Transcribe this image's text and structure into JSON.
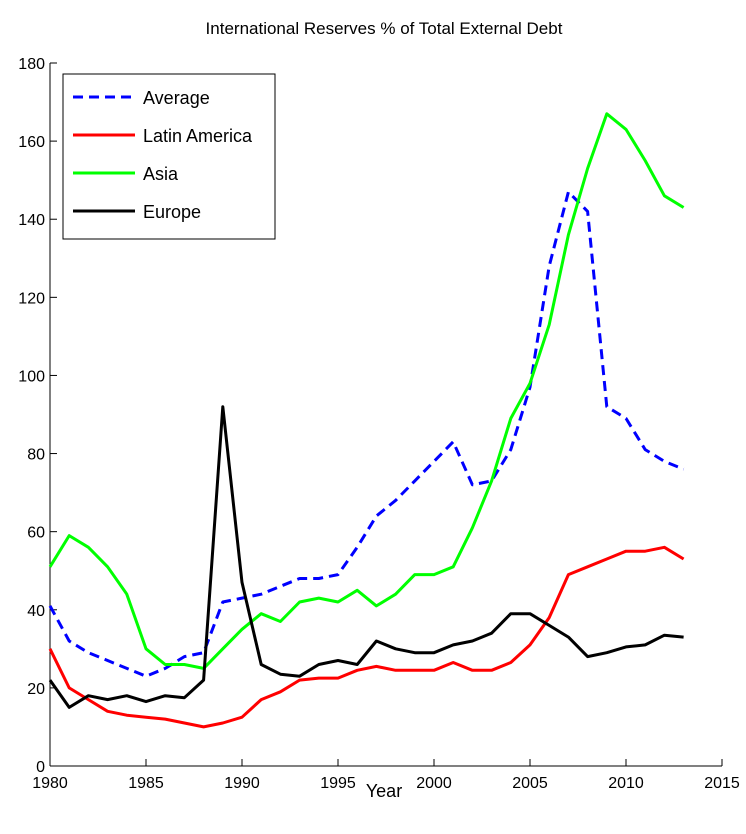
{
  "chart_data": {
    "type": "line",
    "title": "International Reserves % of Total External Debt",
    "xlabel": "Year",
    "ylabel": "",
    "xlim": [
      1980,
      2015
    ],
    "ylim": [
      0,
      180
    ],
    "xticks": [
      1980,
      1985,
      1990,
      1995,
      2000,
      2005,
      2010,
      2015
    ],
    "yticks": [
      0,
      20,
      40,
      60,
      80,
      100,
      120,
      140,
      160,
      180
    ],
    "grid": false,
    "legend_position": "top-left",
    "x": [
      1980,
      1981,
      1982,
      1983,
      1984,
      1985,
      1986,
      1987,
      1988,
      1989,
      1990,
      1991,
      1992,
      1993,
      1994,
      1995,
      1996,
      1997,
      1998,
      1999,
      2000,
      2001,
      2002,
      2003,
      2004,
      2005,
      2006,
      2007,
      2008,
      2009,
      2010,
      2011,
      2012,
      2013
    ],
    "series": [
      {
        "name": "Average",
        "color": "#0000ff",
        "style": "dashed",
        "values": [
          41,
          32,
          29,
          27,
          25,
          23,
          25,
          28,
          29,
          42,
          43,
          44,
          46,
          48,
          48,
          49,
          56,
          64,
          68,
          73,
          78,
          83,
          72,
          73,
          81,
          97,
          128,
          147,
          142,
          92,
          89,
          81,
          78,
          76
        ]
      },
      {
        "name": "Latin America",
        "color": "#ff0000",
        "style": "solid",
        "values": [
          30,
          20,
          17,
          14,
          13,
          12.5,
          12,
          11,
          10,
          11,
          12.5,
          17,
          19,
          22,
          22.5,
          22.5,
          24.5,
          25.5,
          24.5,
          24.5,
          24.5,
          26.5,
          24.5,
          24.5,
          26.5,
          31,
          38,
          49,
          51,
          53,
          55,
          55,
          56,
          53
        ]
      },
      {
        "name": "Asia",
        "color": "#00ff00",
        "style": "solid",
        "values": [
          51,
          59,
          56,
          51,
          44,
          30,
          26,
          26,
          25,
          30,
          35,
          39,
          37,
          42,
          43,
          42,
          45,
          41,
          44,
          49,
          49,
          51,
          61,
          73,
          89,
          98,
          113,
          136,
          153,
          167,
          163,
          155,
          146,
          143
        ]
      },
      {
        "name": "Europe",
        "color": "#000000",
        "style": "solid",
        "values": [
          22,
          15,
          18,
          17,
          18,
          16.5,
          18,
          17.5,
          22,
          92,
          47,
          26,
          23.5,
          23,
          26,
          27,
          26,
          32,
          30,
          29,
          29,
          31,
          32,
          34,
          39,
          39,
          36,
          33,
          28,
          29,
          30.5,
          31,
          33.5,
          33
        ]
      }
    ]
  }
}
